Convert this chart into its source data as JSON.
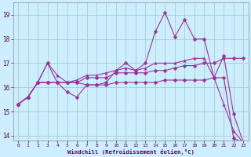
{
  "xlabel": "Windchill (Refroidissement éolien,°C)",
  "bg_color": "#cceeff",
  "grid_color": "#aacccc",
  "line_color": "#993399",
  "x": [
    0,
    1,
    2,
    3,
    4,
    5,
    6,
    7,
    8,
    9,
    10,
    11,
    12,
    13,
    14,
    15,
    16,
    17,
    18,
    19,
    20,
    21,
    22,
    23
  ],
  "series1": [
    15.3,
    15.6,
    16.2,
    17.0,
    16.2,
    15.8,
    15.6,
    16.1,
    16.1,
    16.2,
    16.7,
    17.0,
    16.7,
    17.0,
    18.3,
    19.1,
    18.1,
    18.8,
    18.0,
    18.0,
    16.4,
    17.3,
    14.9,
    13.7
  ],
  "series2": [
    15.3,
    15.6,
    16.2,
    16.2,
    16.2,
    16.2,
    16.2,
    16.4,
    16.4,
    16.4,
    16.6,
    16.6,
    16.6,
    16.6,
    16.7,
    16.7,
    16.8,
    16.9,
    16.9,
    17.0,
    17.0,
    17.2,
    17.2,
    17.2
  ],
  "series3": [
    15.3,
    15.6,
    16.2,
    17.0,
    16.5,
    16.2,
    16.3,
    16.5,
    16.5,
    16.6,
    16.7,
    16.8,
    16.7,
    16.8,
    17.0,
    17.0,
    17.0,
    17.1,
    17.2,
    17.2,
    16.4,
    15.3,
    14.2,
    13.7
  ],
  "series4": [
    15.3,
    15.6,
    16.2,
    16.2,
    16.2,
    16.2,
    16.2,
    16.1,
    16.1,
    16.1,
    16.2,
    16.2,
    16.2,
    16.2,
    16.2,
    16.3,
    16.3,
    16.3,
    16.3,
    16.3,
    16.4,
    16.4,
    13.9,
    13.7
  ],
  "ylim": [
    13.8,
    19.5
  ],
  "xlim": [
    -0.5,
    23.5
  ],
  "yticks": [
    14,
    15,
    16,
    17,
    18,
    19
  ],
  "xticks": [
    0,
    1,
    2,
    3,
    4,
    5,
    6,
    7,
    8,
    9,
    10,
    11,
    12,
    13,
    14,
    15,
    16,
    17,
    18,
    19,
    20,
    21,
    22,
    23
  ]
}
